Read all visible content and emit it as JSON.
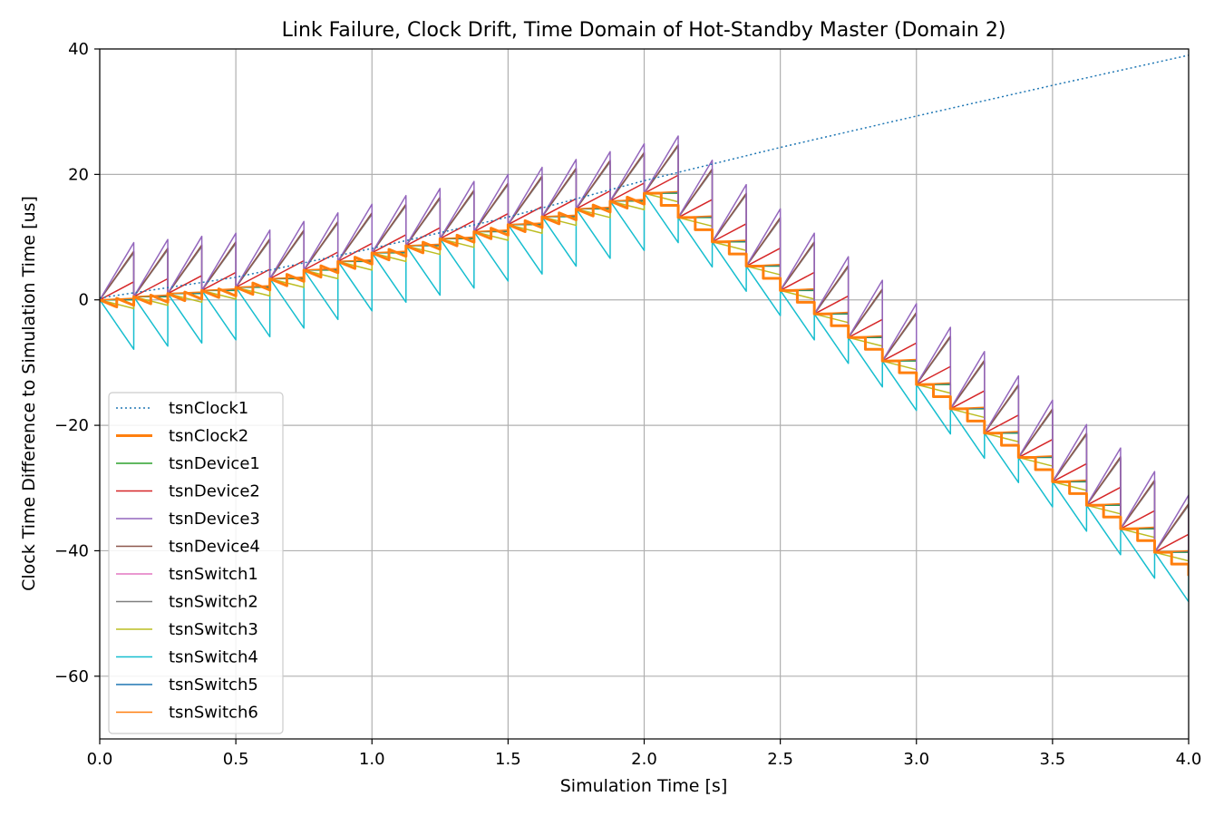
{
  "chart_data": {
    "type": "line",
    "title": "Link Failure, Clock Drift, Time Domain of Hot-Standby Master (Domain 2)",
    "xlabel": "Simulation Time [s]",
    "ylabel": "Clock Time Difference to Simulation Time [us]",
    "xlim": [
      0,
      4
    ],
    "ylim": [
      -70,
      40
    ],
    "xticks": [
      0,
      0.5,
      1,
      1.5,
      2,
      2.5,
      3,
      3.5,
      4
    ],
    "xtick_labels": [
      "0.0",
      "0.5",
      "1.0",
      "1.5",
      "2.0",
      "2.5",
      "3.0",
      "3.5",
      "4.0"
    ],
    "yticks": [
      -60,
      -40,
      -20,
      0,
      20,
      40
    ],
    "ytick_labels": [
      "−60",
      "−40",
      "−20",
      "0",
      "20",
      "40"
    ],
    "grid": true,
    "legend_position": "lower-left",
    "series": [
      {
        "name": "tsnClock1",
        "color": "#1f77b4",
        "style": "dotted",
        "width": 1.5
      },
      {
        "name": "tsnClock2",
        "color": "#ff7f0e",
        "style": "solid",
        "width": 3
      },
      {
        "name": "tsnDevice1",
        "color": "#2ca02c",
        "style": "solid",
        "width": 1.5
      },
      {
        "name": "tsnDevice2",
        "color": "#d62728",
        "style": "solid",
        "width": 1.5
      },
      {
        "name": "tsnDevice3",
        "color": "#9467bd",
        "style": "solid",
        "width": 1.5
      },
      {
        "name": "tsnDevice4",
        "color": "#8c564b",
        "style": "solid",
        "width": 1.5
      },
      {
        "name": "tsnSwitch1",
        "color": "#e377c2",
        "style": "solid",
        "width": 1.5
      },
      {
        "name": "tsnSwitch2",
        "color": "#7f7f7f",
        "style": "solid",
        "width": 1.5
      },
      {
        "name": "tsnSwitch3",
        "color": "#bcbd22",
        "style": "solid",
        "width": 1.5
      },
      {
        "name": "tsnSwitch4",
        "color": "#17becf",
        "style": "solid",
        "width": 1.5
      },
      {
        "name": "tsnSwitch5",
        "color": "#1f77b4",
        "style": "solid",
        "width": 1.5
      },
      {
        "name": "tsnSwitch6",
        "color": "#ff7f0e",
        "style": "solid",
        "width": 1.5
      }
    ],
    "reference_clock": {
      "x": [
        0,
        0.5,
        1,
        1.5,
        2,
        2.5,
        3,
        3.5,
        4
      ],
      "y": [
        0.3,
        3.6,
        8.2,
        13.2,
        19.0,
        24.3,
        29.3,
        34.2,
        39.0
      ]
    },
    "sync_interval_s": 0.125,
    "drift_slopes_us_per_s": {
      "tsnDevice3": 73,
      "tsnDevice4": 62,
      "tsnSwitch2": 60,
      "tsnSwitch1": 61,
      "tsnDevice2": 23,
      "tsnSwitch6": 2,
      "tsnSwitch5": 1,
      "tsnDevice1": 0,
      "tsnSwitch3": -11,
      "tsnSwitch4": -63
    },
    "domain_master_curve": {
      "x": [
        0,
        0.5,
        1,
        1.5,
        2,
        2.5,
        3,
        3.5,
        4
      ],
      "y": [
        0,
        2,
        7.5,
        12,
        17,
        1.5,
        -13.5,
        -29,
        -44
      ]
    },
    "link_failure_time_s": 2.0
  }
}
